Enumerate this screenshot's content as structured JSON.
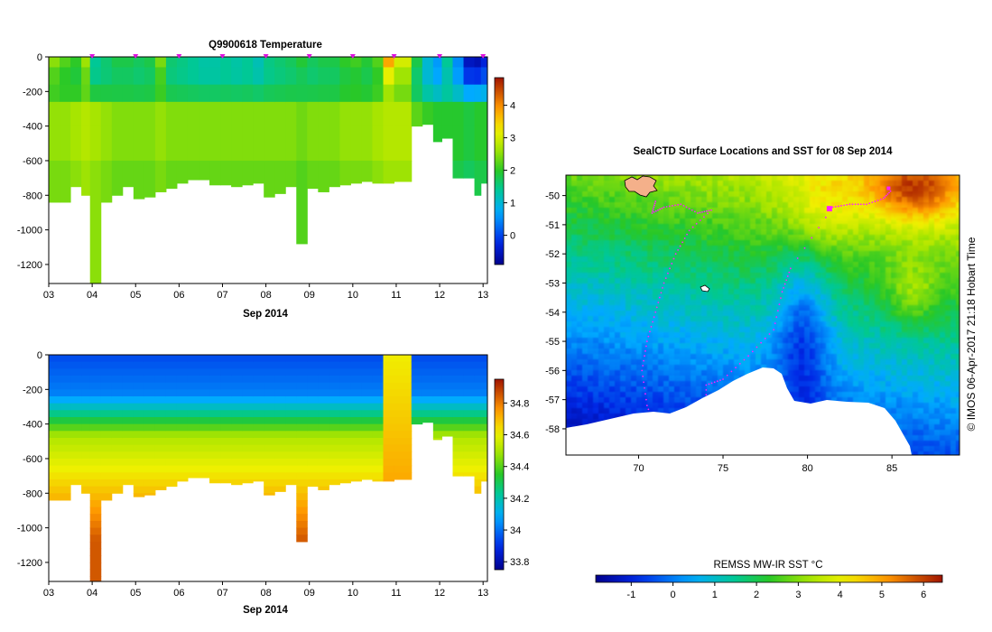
{
  "chart_data": [
    {
      "type": "heatmap",
      "title": "Q9900618  Temperature",
      "xlabel": "Sep 2014",
      "x_ticks": [
        "03",
        "04",
        "05",
        "06",
        "07",
        "08",
        "09",
        "10",
        "11",
        "12",
        "13"
      ],
      "x_range": [
        3.0,
        13.1
      ],
      "y_ticks": [
        0,
        -200,
        -400,
        -600,
        -800,
        -1000,
        -1200
      ],
      "y_range": [
        0,
        -1310
      ],
      "colorbar": {
        "ticks": [
          0,
          1,
          2,
          3,
          4
        ],
        "range": [
          -0.9,
          4.85
        ]
      },
      "profile_markers": [
        4.0,
        5.0,
        6.0,
        7.0,
        8.0,
        9.0,
        10.0,
        10.95,
        12.0,
        13.0
      ],
      "profiles": [
        {
          "x0": 3.0,
          "x1": 3.25,
          "depth": 840,
          "surface": 2.5,
          "deep": 2.5
        },
        {
          "x0": 3.25,
          "x1": 3.5,
          "depth": 840,
          "surface": 2.2,
          "deep": 2.5
        },
        {
          "x0": 3.5,
          "x1": 3.75,
          "depth": 750,
          "surface": 2.0,
          "deep": 2.6
        },
        {
          "x0": 3.75,
          "x1": 3.95,
          "depth": 800,
          "surface": 2.6,
          "deep": 2.7
        },
        {
          "x0": 3.95,
          "x1": 4.2,
          "depth": 1310,
          "surface": 1.4,
          "deep": 2.6
        },
        {
          "x0": 4.2,
          "x1": 4.45,
          "depth": 840,
          "surface": 1.6,
          "deep": 2.5
        },
        {
          "x0": 4.45,
          "x1": 4.7,
          "depth": 800,
          "surface": 1.8,
          "deep": 2.4
        },
        {
          "x0": 4.7,
          "x1": 4.95,
          "depth": 750,
          "surface": 1.8,
          "deep": 2.4
        },
        {
          "x0": 4.95,
          "x1": 5.2,
          "depth": 820,
          "surface": 1.7,
          "deep": 2.4
        },
        {
          "x0": 5.2,
          "x1": 5.45,
          "depth": 810,
          "surface": 1.8,
          "deep": 2.4
        },
        {
          "x0": 5.45,
          "x1": 5.7,
          "depth": 780,
          "surface": 2.4,
          "deep": 2.5
        },
        {
          "x0": 5.7,
          "x1": 5.95,
          "depth": 760,
          "surface": 1.6,
          "deep": 2.4
        },
        {
          "x0": 5.95,
          "x1": 6.2,
          "depth": 730,
          "surface": 1.5,
          "deep": 2.4
        },
        {
          "x0": 6.2,
          "x1": 6.45,
          "depth": 710,
          "surface": 1.4,
          "deep": 2.4
        },
        {
          "x0": 6.45,
          "x1": 6.7,
          "depth": 710,
          "surface": 1.3,
          "deep": 2.4
        },
        {
          "x0": 6.7,
          "x1": 6.95,
          "depth": 740,
          "surface": 1.3,
          "deep": 2.4
        },
        {
          "x0": 6.95,
          "x1": 7.2,
          "depth": 740,
          "surface": 1.4,
          "deep": 2.4
        },
        {
          "x0": 7.2,
          "x1": 7.45,
          "depth": 750,
          "surface": 1.3,
          "deep": 2.4
        },
        {
          "x0": 7.45,
          "x1": 7.7,
          "depth": 740,
          "surface": 1.4,
          "deep": 2.4
        },
        {
          "x0": 7.7,
          "x1": 7.95,
          "depth": 730,
          "surface": 1.2,
          "deep": 2.4
        },
        {
          "x0": 7.95,
          "x1": 8.2,
          "depth": 810,
          "surface": 1.5,
          "deep": 2.4
        },
        {
          "x0": 8.2,
          "x1": 8.45,
          "depth": 790,
          "surface": 1.6,
          "deep": 2.4
        },
        {
          "x0": 8.45,
          "x1": 8.7,
          "depth": 750,
          "surface": 1.7,
          "deep": 2.4
        },
        {
          "x0": 8.7,
          "x1": 8.95,
          "depth": 1080,
          "surface": 1.9,
          "deep": 2.3
        },
        {
          "x0": 8.95,
          "x1": 9.2,
          "depth": 760,
          "surface": 1.7,
          "deep": 2.4
        },
        {
          "x0": 9.2,
          "x1": 9.45,
          "depth": 780,
          "surface": 1.8,
          "deep": 2.4
        },
        {
          "x0": 9.45,
          "x1": 9.7,
          "depth": 750,
          "surface": 1.8,
          "deep": 2.4
        },
        {
          "x0": 9.7,
          "x1": 9.95,
          "depth": 740,
          "surface": 2.0,
          "deep": 2.5
        },
        {
          "x0": 9.95,
          "x1": 10.2,
          "depth": 730,
          "surface": 2.1,
          "deep": 2.5
        },
        {
          "x0": 10.2,
          "x1": 10.45,
          "depth": 720,
          "surface": 1.9,
          "deep": 2.5
        },
        {
          "x0": 10.45,
          "x1": 10.7,
          "depth": 730,
          "surface": 2.2,
          "deep": 2.6
        },
        {
          "x0": 10.7,
          "x1": 10.95,
          "depth": 730,
          "surface": 3.8,
          "deep": 2.7
        },
        {
          "x0": 10.95,
          "x1": 11.35,
          "depth": 720,
          "surface": 3.0,
          "deep": 2.7
        },
        {
          "x0": 11.35,
          "x1": 11.6,
          "depth": 400,
          "surface": 1.8,
          "deep": 2.2
        },
        {
          "x0": 11.6,
          "x1": 11.85,
          "depth": 390,
          "surface": 1.0,
          "deep": 2.0
        },
        {
          "x0": 11.85,
          "x1": 12.05,
          "depth": 490,
          "surface": 0.6,
          "deep": 1.9
        },
        {
          "x0": 12.05,
          "x1": 12.3,
          "depth": 470,
          "surface": 1.4,
          "deep": 1.9
        },
        {
          "x0": 12.3,
          "x1": 12.55,
          "depth": 700,
          "surface": 0.5,
          "deep": 1.9
        },
        {
          "x0": 12.55,
          "x1": 12.8,
          "depth": 700,
          "surface": -0.5,
          "deep": 1.8
        },
        {
          "x0": 12.8,
          "x1": 12.95,
          "depth": 800,
          "surface": -0.6,
          "deep": 1.9
        },
        {
          "x0": 12.95,
          "x1": 13.1,
          "depth": 730,
          "surface": -0.3,
          "deep": 1.9
        }
      ]
    },
    {
      "type": "heatmap",
      "title": "",
      "xlabel": "Sep 2014",
      "x_ticks": [
        "03",
        "04",
        "05",
        "06",
        "07",
        "08",
        "09",
        "10",
        "11",
        "12",
        "13"
      ],
      "x_range": [
        3.0,
        13.1
      ],
      "y_ticks": [
        0,
        -200,
        -400,
        -600,
        -800,
        -1000,
        -1200
      ],
      "y_range": [
        0,
        -1310
      ],
      "colorbar": {
        "ticks": [
          33.8,
          34,
          34.2,
          34.4,
          34.6,
          34.8
        ],
        "range": [
          33.75,
          34.95
        ]
      },
      "salinity_profile": {
        "surface": 33.95,
        "mid": 34.35,
        "deep": 34.75
      }
    },
    {
      "type": "heatmap",
      "title": "SealCTD Surface Locations and SST for 08 Sep 2014",
      "x_ticks": [
        "70",
        "75",
        "80",
        "85"
      ],
      "x_range": [
        65.7,
        89.0
      ],
      "y_ticks": [
        "-50",
        "-51",
        "-52",
        "-53",
        "-54",
        "-55",
        "-56",
        "-57",
        "-58"
      ],
      "y_range": [
        -49.3,
        -58.9
      ],
      "colorbar_title": "REMSS MW-IR SST °C",
      "colorbar": {
        "ticks": [
          -1,
          0,
          1,
          2,
          3,
          4,
          5,
          6
        ],
        "range": [
          -1.85,
          6.45
        ]
      },
      "credit": "© IMOS 06-Apr-2017 21:18 Hobart Time"
    }
  ]
}
